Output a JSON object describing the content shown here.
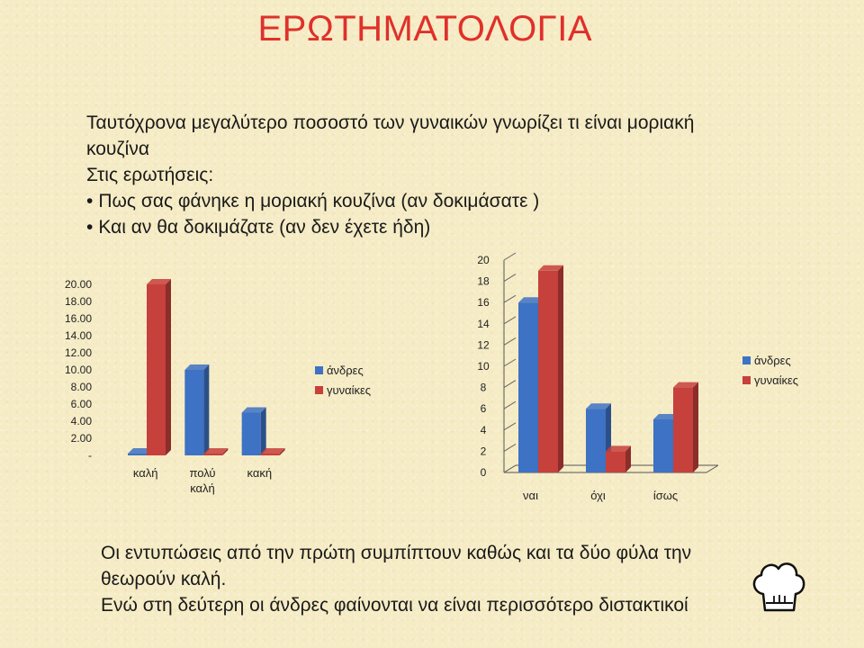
{
  "title": "ΕΡΩΤΗΜΑΤΟΛΟΓΙΑ",
  "intro": {
    "line1": "Ταυτόχρονα μεγαλύτερο ποσοστό των γυναικών γνωρίζει τι είναι μοριακή",
    "line2": "κουζίνα",
    "line3": "Στις ερωτήσεις:",
    "bullet1": "Πως σας  φάνηκε η μοριακή κουζίνα (αν δοκιμάσατε )",
    "bullet2": "Και αν θα δοκιμάζατε (αν δεν έχετε ήδη)"
  },
  "colors": {
    "men": "#3d72c4",
    "women": "#c6403c",
    "title": "#e0302a"
  },
  "chart_data": [
    {
      "type": "bar",
      "categories": [
        "καλή",
        "πολύ\nκαλή",
        "κακή"
      ],
      "ytick_labels": [
        "-",
        "2.00",
        "4.00",
        "6.00",
        "8.00",
        "10.00",
        "12.00",
        "14.00",
        "16.00",
        "18.00",
        "20.00"
      ],
      "ylim": [
        0,
        20
      ],
      "series": [
        {
          "name": "άνδρες",
          "values": [
            0,
            10,
            5
          ]
        },
        {
          "name": "γυναίκες",
          "values": [
            20,
            0,
            0
          ]
        }
      ],
      "legend": "right"
    },
    {
      "type": "bar",
      "categories": [
        "ναι",
        "όχι",
        "ίσως"
      ],
      "ytick_labels": [
        "0",
        "2",
        "4",
        "6",
        "8",
        "10",
        "12",
        "14",
        "16",
        "18",
        "20"
      ],
      "ylim": [
        0,
        20
      ],
      "series": [
        {
          "name": "άνδρες",
          "values": [
            16,
            6,
            5
          ]
        },
        {
          "name": "γυναίκες",
          "values": [
            19,
            2,
            8
          ]
        }
      ],
      "legend": "right"
    }
  ],
  "bottom": {
    "line1": "Οι  εντυπώσεις από την πρώτη συμπίπτουν καθώς και τα δύο φύλα την",
    "line2": "θεωρούν καλή.",
    "line3": "Ενώ στη δεύτερη οι άνδρες φαίνονται να είναι περισσότερο διστακτικοί"
  },
  "icons": {
    "chef": "chef-hat-icon"
  }
}
